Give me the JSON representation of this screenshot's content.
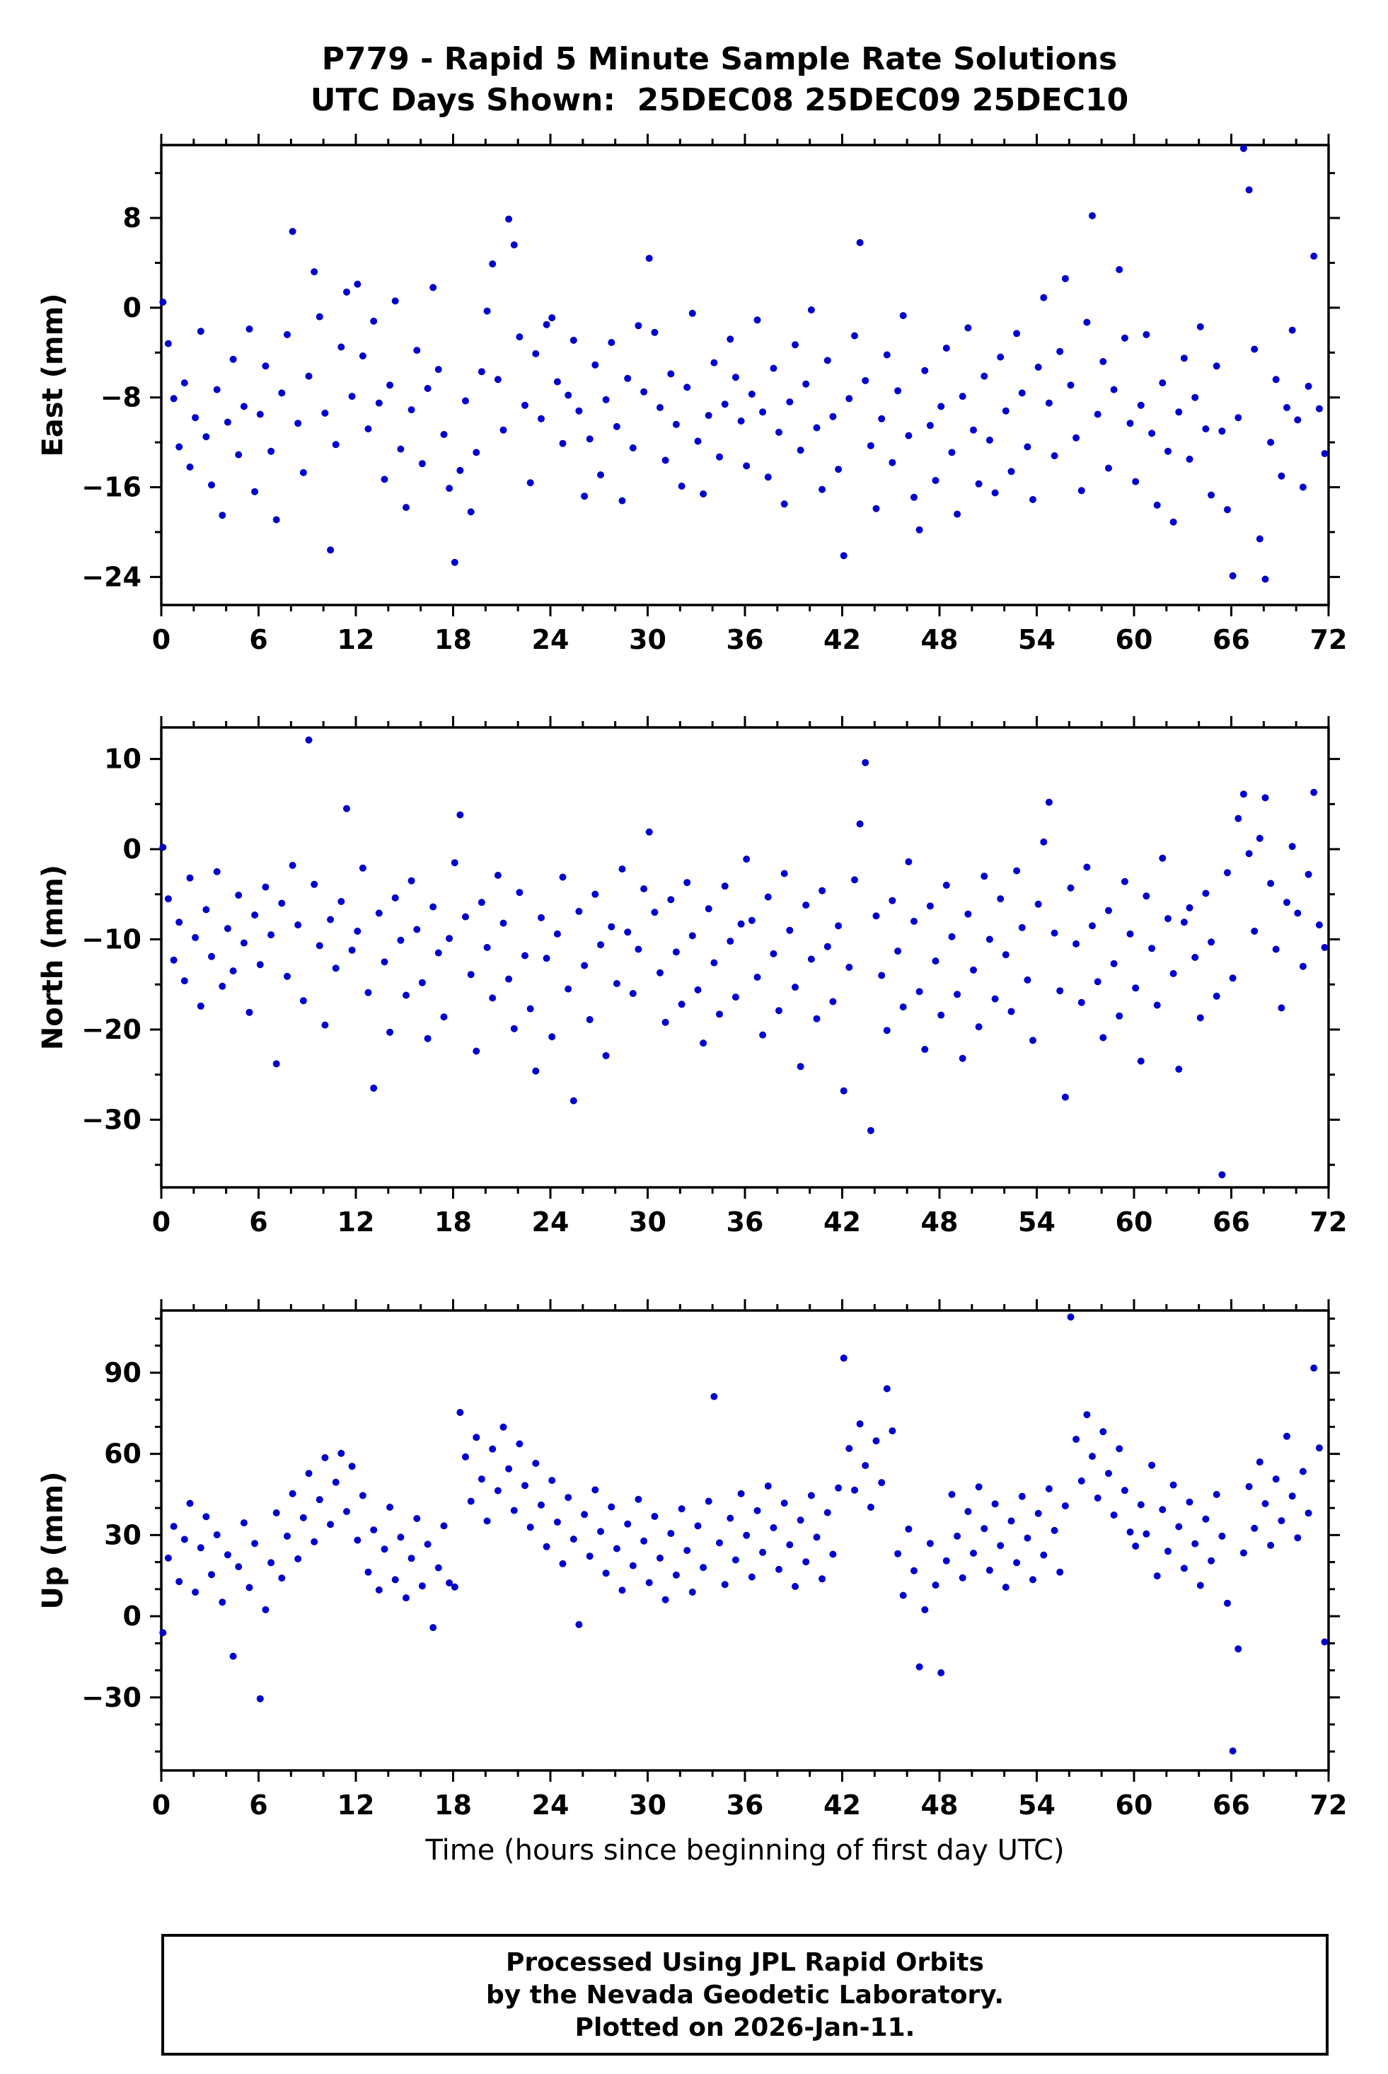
{
  "chart_data": {
    "type": "scatter",
    "title": "P779 - Rapid 5 Minute Sample Rate Solutions",
    "subtitle": "UTC Days Shown:  25DEC08 25DEC09 25DEC10",
    "xlabel": "Time (hours since beginning of first day UTC)",
    "marker_color": "#0000cc",
    "frame_color": "#000000",
    "x_axis": {
      "min": 0,
      "max": 72,
      "ticks": [
        0,
        6,
        12,
        18,
        24,
        30,
        36,
        42,
        48,
        54,
        60,
        66,
        72
      ],
      "minor_step": 2
    },
    "panels": [
      {
        "panel": "east",
        "ylabel": "East (mm)",
        "ylim": [
          -26.5,
          14.5
        ],
        "yticks": [
          8,
          0,
          -8,
          -16,
          -24
        ],
        "y_minor_step": 4,
        "x_start": 0.1,
        "x_step": 0.3333,
        "y": [
          0.5,
          -3.2,
          -8.1,
          -12.4,
          -6.7,
          -14.2,
          -9.8,
          -2.1,
          -11.5,
          -15.8,
          -7.3,
          -18.5,
          -10.2,
          -4.6,
          -13.1,
          -8.8,
          -1.9,
          -16.4,
          -9.5,
          -5.2,
          -12.8,
          -18.9,
          -7.6,
          -2.4,
          6.8,
          -10.3,
          -14.7,
          -6.1,
          3.2,
          -0.8,
          -9.4,
          -21.6,
          -12.2,
          -3.5,
          1.4,
          -7.9,
          2.1,
          -4.3,
          -10.8,
          -1.2,
          -8.5,
          -15.3,
          -6.9,
          0.6,
          -12.6,
          -17.8,
          -9.1,
          -3.8,
          -13.9,
          -7.2,
          1.8,
          -5.5,
          -11.3,
          -16.1,
          -22.7,
          -14.5,
          -8.3,
          -18.2,
          -12.9,
          -5.7,
          -0.3,
          3.9,
          -6.4,
          -10.9,
          7.9,
          5.6,
          -2.6,
          -8.7,
          -15.6,
          -4.1,
          -9.9,
          -1.5,
          -0.9,
          -6.6,
          -12.1,
          -7.8,
          -2.9,
          -9.2,
          -16.8,
          -11.7,
          -5.1,
          -14.9,
          -8.2,
          -3.1,
          -10.6,
          -17.2,
          -6.3,
          -12.5,
          -1.6,
          -7.5,
          4.4,
          -2.2,
          -8.9,
          -13.6,
          -5.9,
          -10.4,
          -15.9,
          -7.1,
          -0.5,
          -11.9,
          -16.6,
          -9.6,
          -4.9,
          -13.3,
          -8.6,
          -2.8,
          -6.2,
          -10.1,
          -14.1,
          -7.7,
          -1.1,
          -9.3,
          -15.1,
          -5.4,
          -11.1,
          -17.5,
          -8.4,
          -3.3,
          -12.7,
          -6.8,
          -0.2,
          -10.7,
          -16.2,
          -4.7,
          -9.7,
          -14.4,
          -22.1,
          -8.1,
          -2.5,
          5.8,
          -6.5,
          -12.3,
          -17.9,
          -9.9,
          -4.2,
          -13.8,
          -7.4,
          -0.7,
          -11.4,
          -16.9,
          -19.8,
          -5.6,
          -10.5,
          -15.4,
          -8.8,
          -3.6,
          -12.9,
          -18.4,
          -7.9,
          -1.8,
          -10.9,
          -15.7,
          -6.1,
          -11.8,
          -16.5,
          -4.4,
          -9.2,
          -14.6,
          -2.3,
          -7.6,
          -12.4,
          -17.1,
          -5.3,
          0.9,
          -8.5,
          -13.2,
          -3.9,
          2.6,
          -6.9,
          -11.6,
          -16.3,
          -1.3,
          8.2,
          -9.5,
          -4.8,
          -14.3,
          -7.3,
          3.4,
          -2.7,
          -10.3,
          -15.5,
          -8.7,
          -2.4,
          -11.2,
          -17.6,
          -6.7,
          -12.8,
          -19.1,
          -9.3,
          -4.5,
          -13.5,
          -8.0,
          -1.7,
          -10.8,
          -16.7,
          -5.2,
          -11.0,
          -18.0,
          -23.9,
          -9.8,
          14.2,
          10.5,
          -3.7,
          -20.6,
          -24.2,
          -12.0,
          -6.4,
          -15.0,
          -8.9,
          -2.0,
          -10.0,
          -16.0,
          -7.0,
          4.6,
          -9.0,
          -13.0
        ]
      },
      {
        "panel": "north",
        "ylabel": "North (mm)",
        "ylim": [
          -37.5,
          13.5
        ],
        "yticks": [
          10,
          0,
          -10,
          -20,
          -30
        ],
        "y_minor_step": 5,
        "x_start": 0.1,
        "x_step": 0.3333,
        "y": [
          0.2,
          -5.5,
          -12.3,
          -8.1,
          -14.6,
          -3.2,
          -9.8,
          -17.4,
          -6.7,
          -11.9,
          -2.5,
          -15.2,
          -8.8,
          -13.5,
          -5.1,
          -10.4,
          -18.1,
          -7.3,
          -12.8,
          -4.2,
          -9.5,
          -23.8,
          -6.0,
          -14.1,
          -1.8,
          -8.4,
          -16.8,
          12.1,
          -3.9,
          -10.7,
          -19.5,
          -7.8,
          -13.2,
          -5.8,
          4.5,
          -11.2,
          -9.1,
          -2.1,
          -15.9,
          -26.5,
          -7.1,
          -12.5,
          -20.3,
          -5.4,
          -10.1,
          -16.2,
          -3.5,
          -8.9,
          -14.8,
          -21.0,
          -6.4,
          -11.5,
          -18.6,
          -9.9,
          -1.5,
          3.8,
          -7.5,
          -13.9,
          -22.4,
          -5.9,
          -10.9,
          -16.5,
          -2.9,
          -8.2,
          -14.4,
          -19.9,
          -4.8,
          -11.8,
          -17.7,
          -24.6,
          -7.6,
          -12.1,
          -20.8,
          -9.4,
          -3.1,
          -15.5,
          -27.9,
          -6.9,
          -12.9,
          -18.9,
          -5.0,
          -10.6,
          -22.9,
          -8.6,
          -14.9,
          -2.2,
          -9.2,
          -16.0,
          -11.1,
          -4.4,
          1.9,
          -7.0,
          -13.7,
          -19.2,
          -5.6,
          -11.4,
          -17.2,
          -3.7,
          -9.6,
          -15.6,
          -21.5,
          -6.6,
          -12.6,
          -18.3,
          -4.1,
          -10.2,
          -16.4,
          -8.3,
          -1.1,
          -7.9,
          -14.2,
          -20.6,
          -5.3,
          -11.6,
          -17.9,
          -2.7,
          -9.0,
          -15.3,
          -24.1,
          -6.2,
          -12.2,
          -18.8,
          -4.6,
          -10.8,
          -16.9,
          -8.5,
          -26.8,
          -13.1,
          -3.4,
          2.8,
          9.6,
          -31.2,
          -7.4,
          -14.0,
          -20.1,
          -5.7,
          -11.3,
          -17.5,
          -1.4,
          -8.0,
          -15.8,
          -22.2,
          -6.3,
          -12.4,
          -18.4,
          -4.0,
          -9.7,
          -16.1,
          -23.2,
          -7.2,
          -13.4,
          -19.7,
          -3.0,
          -10.0,
          -16.6,
          -5.5,
          -11.7,
          -18.0,
          -2.4,
          -8.7,
          -14.5,
          -21.2,
          -6.1,
          0.8,
          5.2,
          -9.3,
          -15.7,
          -27.5,
          -4.3,
          -10.5,
          -17.0,
          -2.0,
          -8.5,
          -14.7,
          -20.9,
          -6.8,
          -12.7,
          -18.5,
          -3.6,
          -9.4,
          -15.4,
          -23.5,
          -5.2,
          -11.0,
          -17.3,
          -1.0,
          -7.7,
          -13.8,
          -24.4,
          -8.1,
          -6.5,
          -12.0,
          -18.7,
          -4.9,
          -10.3,
          -16.3,
          -36.1,
          -2.6,
          -14.3,
          3.4,
          6.1,
          -0.5,
          -9.1,
          1.2,
          5.7,
          -3.8,
          -11.1,
          -17.6,
          -5.9,
          0.3,
          -7.1,
          -13.0,
          -2.8,
          6.3,
          -8.4,
          -10.9
        ]
      },
      {
        "panel": "up",
        "ylabel": "Up (mm)",
        "ylim": [
          -57,
          113
        ],
        "yticks": [
          90,
          60,
          30,
          0,
          -30
        ],
        "y_minor_step": 10,
        "x_start": 0.1,
        "x_step": 0.3333,
        "y": [
          -6.1,
          21.5,
          33.2,
          12.8,
          28.4,
          41.7,
          8.9,
          25.3,
          36.8,
          15.4,
          30.1,
          5.2,
          22.7,
          -14.8,
          18.3,
          34.5,
          10.6,
          26.9,
          -30.5,
          2.4,
          19.8,
          38.2,
          14.1,
          29.6,
          45.3,
          21.2,
          36.4,
          52.8,
          27.5,
          43.1,
          58.6,
          33.9,
          49.5,
          60.2,
          38.7,
          55.4,
          28.1,
          44.6,
          16.3,
          31.9,
          9.7,
          24.8,
          40.3,
          13.5,
          29.2,
          6.8,
          21.4,
          36.1,
          11.2,
          26.6,
          -4.2,
          17.9,
          33.4,
          12.3,
          10.8,
          75.3,
          58.9,
          42.5,
          66.1,
          50.7,
          35.2,
          61.8,
          46.4,
          69.9,
          54.5,
          39.1,
          63.7,
          48.3,
          32.9,
          56.5,
          41.1,
          25.7,
          50.2,
          34.8,
          19.4,
          43.9,
          28.5,
          -3.1,
          37.6,
          22.2,
          46.7,
          31.3,
          15.9,
          40.4,
          25.0,
          9.6,
          34.1,
          18.7,
          43.2,
          27.8,
          12.4,
          36.9,
          21.5,
          6.1,
          30.6,
          15.2,
          39.7,
          24.3,
          8.9,
          33.4,
          18.0,
          42.5,
          81.2,
          27.1,
          11.7,
          36.2,
          20.8,
          45.3,
          29.9,
          14.5,
          39.0,
          23.6,
          48.1,
          32.7,
          17.3,
          41.8,
          26.4,
          11.0,
          35.5,
          20.1,
          44.6,
          29.2,
          13.8,
          38.3,
          22.9,
          47.4,
          95.4,
          62.0,
          46.6,
          71.1,
          55.7,
          40.3,
          64.8,
          49.4,
          84.1,
          68.5,
          23.1,
          7.7,
          32.2,
          16.8,
          -18.7,
          2.4,
          26.9,
          11.5,
          -20.9,
          20.5,
          45.0,
          29.6,
          14.2,
          38.7,
          23.3,
          47.8,
          32.4,
          17.0,
          41.5,
          26.1,
          10.7,
          35.2,
          19.8,
          44.3,
          28.9,
          13.5,
          38.0,
          22.6,
          47.1,
          31.7,
          16.3,
          40.8,
          110.6,
          65.4,
          50.0,
          74.5,
          59.1,
          43.7,
          68.2,
          52.8,
          37.4,
          61.9,
          46.5,
          31.1,
          25.9,
          41.2,
          30.4,
          55.8,
          14.9,
          39.4,
          24.0,
          48.5,
          33.1,
          17.7,
          42.2,
          26.8,
          11.4,
          35.9,
          20.5,
          45.0,
          29.6,
          4.8,
          -49.8,
          -12.1,
          23.4,
          47.9,
          32.5,
          57.0,
          41.6,
          26.2,
          50.7,
          35.3,
          66.5,
          44.4,
          29.0,
          53.5,
          38.1,
          91.7,
          62.2,
          -9.5
        ]
      }
    ]
  },
  "footer": {
    "line1": "Processed Using JPL Rapid Orbits",
    "line2": "by the Nevada Geodetic Laboratory.",
    "line3": "Plotted on 2026-Jan-11."
  }
}
